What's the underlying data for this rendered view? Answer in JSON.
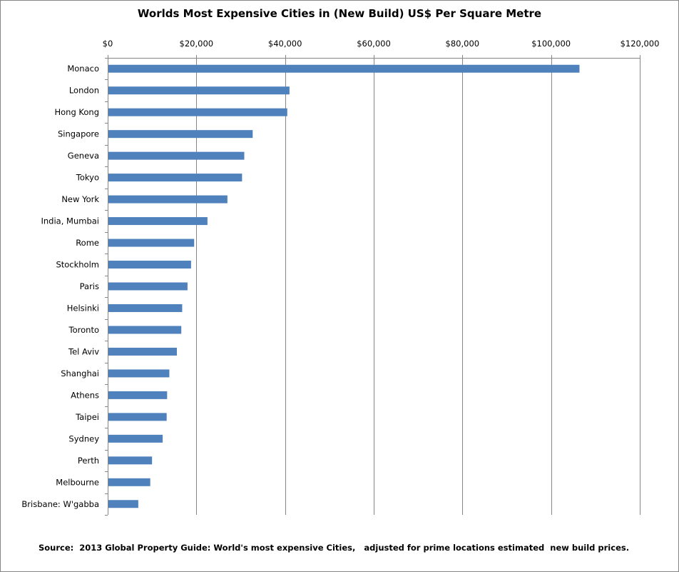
{
  "chart_data": {
    "type": "bar",
    "orientation": "horizontal",
    "title": "Worlds Most Expensive Cities in (New Build) US$ Per Square Metre",
    "source": "Source:  2013 Global Property Guide: World's most expensive Cities,   adjusted for prime locations estimated  new build prices.",
    "xlim": [
      0,
      120000
    ],
    "x_ticks": [
      0,
      20000,
      40000,
      60000,
      80000,
      100000,
      120000
    ],
    "x_tick_labels": [
      "$0",
      "$20,000",
      "$40,000",
      "$60,000",
      "$80,000",
      "$100,000",
      "$120,000"
    ],
    "x_axis_position": "top",
    "grid": "vertical",
    "legend": "none",
    "bar_color": "#4F81BD",
    "categories": [
      "Monaco",
      "London",
      "Hong Kong",
      "Singapore",
      "Geneva",
      "Tokyo",
      "New York",
      "India, Mumbai",
      "Rome",
      "Stockholm",
      "Paris",
      "Helsinki",
      "Toronto",
      "Tel Aviv",
      "Shanghai",
      "Athens",
      "Taipei",
      "Sydney",
      "Perth",
      "Melbourne",
      "Brisbane: W'gabba"
    ],
    "values": [
      106400,
      41000,
      40500,
      32700,
      30800,
      30300,
      27000,
      22500,
      19500,
      18800,
      18000,
      16800,
      16600,
      15600,
      13900,
      13400,
      13300,
      12400,
      10000,
      9600,
      6900
    ]
  }
}
